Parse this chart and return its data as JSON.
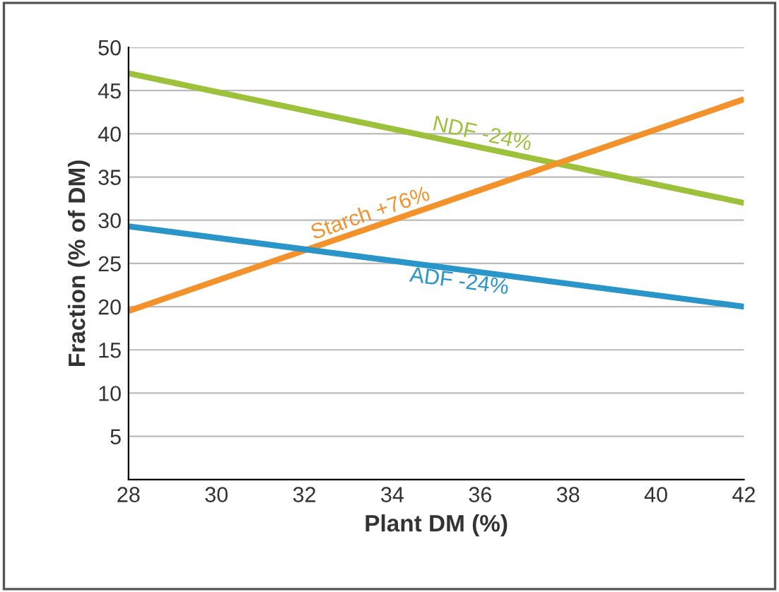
{
  "chart_data": {
    "type": "line",
    "xlabel": "Plant DM (%)",
    "ylabel": "Fraction (% of DM)",
    "xlim": [
      28,
      42
    ],
    "xticks": [
      28,
      30,
      32,
      34,
      36,
      38,
      40,
      42
    ],
    "ylim": [
      0,
      50
    ],
    "yticks": [
      5,
      10,
      15,
      20,
      25,
      30,
      35,
      40,
      45,
      50
    ],
    "grid": "y",
    "legend": false,
    "series": [
      {
        "color": "#9dc13b",
        "values": [
          47,
          32
        ]
      },
      {
        "color": "#f3922b",
        "values": [
          19.5,
          44
        ]
      },
      {
        "color": "#2a95c8",
        "values": [
          29.3,
          20
        ]
      }
    ],
    "x": [
      28,
      42
    ],
    "annotations": [
      "NDF -24%",
      "Starch +76%",
      "ADF -24%"
    ]
  }
}
